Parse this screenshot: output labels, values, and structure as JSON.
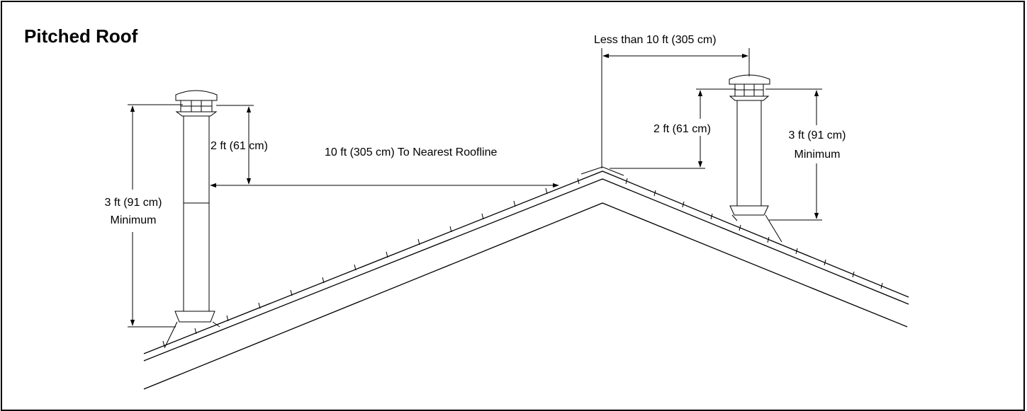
{
  "title": "Pitched Roof",
  "labels": {
    "left_clearance": "2 ft (61 cm)",
    "left_min_height": "3 ft (91 cm)",
    "left_min_word": "Minimum",
    "horizontal_distance": "10 ft (305 cm) To Nearest Roofline",
    "right_less_than": "Less than 10 ft (305 cm)",
    "right_clearance": "2 ft (61 cm)",
    "right_min_height": "3 ft (91 cm)",
    "right_min_word": "Minimum"
  }
}
